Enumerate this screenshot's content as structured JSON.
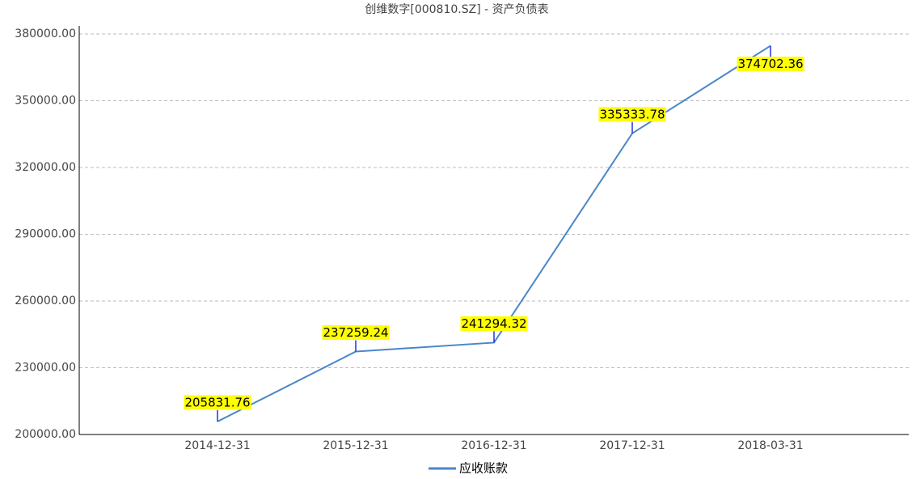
{
  "chart_data": {
    "type": "line",
    "title": "创维数字[000810.SZ] - 资产负债表",
    "categories": [
      "2014-12-31",
      "2015-12-31",
      "2016-12-31",
      "2017-12-31",
      "2018-03-31"
    ],
    "series": [
      {
        "name": "应收账款",
        "color": "#4a86c8",
        "values": [
          205831.76,
          237259.24,
          241294.32,
          335333.78,
          374702.36
        ]
      }
    ],
    "ylim": [
      200000,
      380000
    ],
    "yticks": [
      {
        "value": 200000,
        "label": "200000.00"
      },
      {
        "value": 230000,
        "label": "230000.00"
      },
      {
        "value": 260000,
        "label": "260000.00"
      },
      {
        "value": 290000,
        "label": "290000.00"
      },
      {
        "value": 320000,
        "label": "320000.00"
      },
      {
        "value": 350000,
        "label": "350000.00"
      },
      {
        "value": 380000,
        "label": "380000.00"
      }
    ],
    "grid": true
  }
}
